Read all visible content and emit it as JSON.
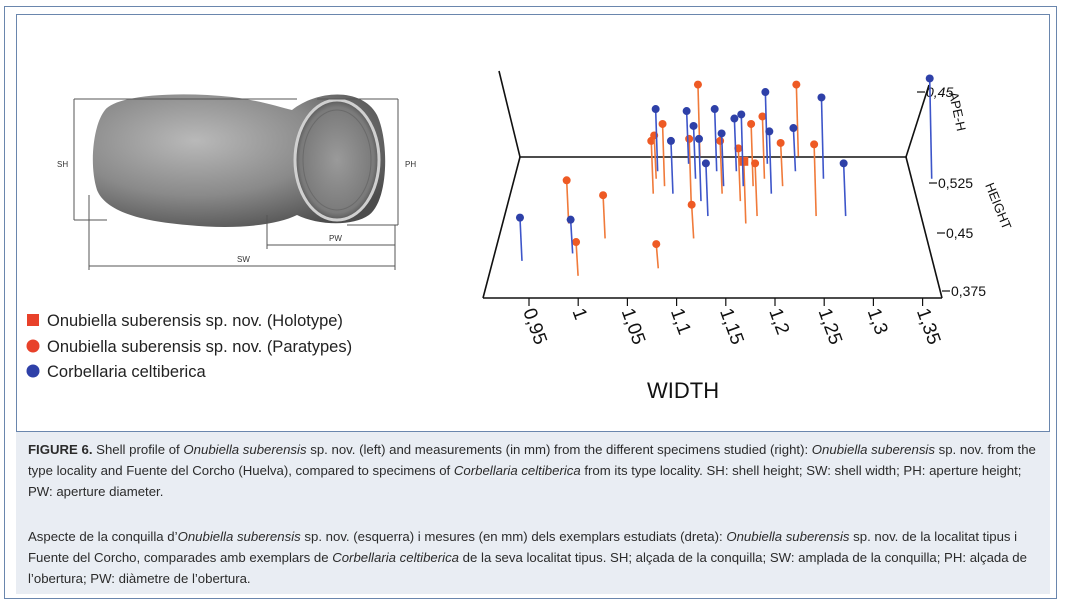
{
  "shell_labels": {
    "sh": "SH",
    "ph": "PH",
    "pw": "PW",
    "sw": "SW"
  },
  "legend": [
    {
      "marker": "square",
      "color": "#e8412a",
      "label": "Onubiella suberensis sp. nov. (Holotype)"
    },
    {
      "marker": "circle",
      "color": "#e8412a",
      "label": "Onubiella suberensis sp. nov. (Paratypes)"
    },
    {
      "marker": "circle",
      "color": "#2e40a8",
      "label": "Corbellaria celtiberica"
    }
  ],
  "chart_data": {
    "type": "scatter3d",
    "xlabel": "WIDTH",
    "ylabel": "HEIGHT",
    "zlabel": "APE-H",
    "x_ticks": [
      "0,95",
      "1",
      "1,05",
      "1,1",
      "1,15",
      "1,2",
      "1,25",
      "1,3",
      "1,35"
    ],
    "y_ticks": [
      "0,525",
      "0,45",
      "0,375"
    ],
    "z_ticks": [
      "0,45"
    ],
    "series": [
      {
        "name": "Onubiella suberensis sp. nov. (Holotype)",
        "marker": "square",
        "color": "#e8412a",
        "points": [
          {
            "w": 1.18,
            "h": 0.46,
            "a": 0.43
          }
        ]
      },
      {
        "name": "Onubiella suberensis sp. nov. (Paratypes)",
        "marker": "circle",
        "color": "#e8412a",
        "points": [
          {
            "w": 1.02,
            "h": 0.39,
            "a": 0.4
          },
          {
            "w": 1.0,
            "h": 0.46,
            "a": 0.41
          },
          {
            "w": 1.04,
            "h": 0.44,
            "a": 0.41
          },
          {
            "w": 1.09,
            "h": 0.51,
            "a": 0.43
          },
          {
            "w": 1.08,
            "h": 0.5,
            "a": 0.42
          },
          {
            "w": 1.08,
            "h": 0.52,
            "a": 0.41
          },
          {
            "w": 1.12,
            "h": 0.55,
            "a": 0.44
          },
          {
            "w": 1.12,
            "h": 0.49,
            "a": 0.43
          },
          {
            "w": 1.13,
            "h": 0.44,
            "a": 0.4
          },
          {
            "w": 1.15,
            "h": 0.5,
            "a": 0.42
          },
          {
            "w": 1.17,
            "h": 0.49,
            "a": 0.42
          },
          {
            "w": 1.18,
            "h": 0.51,
            "a": 0.43
          },
          {
            "w": 1.19,
            "h": 0.52,
            "a": 0.43
          },
          {
            "w": 1.19,
            "h": 0.47,
            "a": 0.42
          },
          {
            "w": 1.21,
            "h": 0.51,
            "a": 0.41
          },
          {
            "w": 1.22,
            "h": 0.55,
            "a": 0.44
          },
          {
            "w": 1.25,
            "h": 0.47,
            "a": 0.44
          },
          {
            "w": 1.1,
            "h": 0.4,
            "a": 0.39
          }
        ]
      },
      {
        "name": "Corbellaria celtiberica",
        "marker": "circle",
        "color": "#2e40a8",
        "points": [
          {
            "w": 0.96,
            "h": 0.41,
            "a": 0.41
          },
          {
            "w": 1.01,
            "h": 0.42,
            "a": 0.4
          },
          {
            "w": 1.08,
            "h": 0.53,
            "a": 0.43
          },
          {
            "w": 1.1,
            "h": 0.5,
            "a": 0.42
          },
          {
            "w": 1.11,
            "h": 0.54,
            "a": 0.42
          },
          {
            "w": 1.12,
            "h": 0.52,
            "a": 0.42
          },
          {
            "w": 1.13,
            "h": 0.49,
            "a": 0.43
          },
          {
            "w": 1.14,
            "h": 0.53,
            "a": 0.43
          },
          {
            "w": 1.15,
            "h": 0.51,
            "a": 0.42
          },
          {
            "w": 1.16,
            "h": 0.53,
            "a": 0.42
          },
          {
            "w": 1.17,
            "h": 0.51,
            "a": 0.44
          },
          {
            "w": 1.19,
            "h": 0.54,
            "a": 0.44
          },
          {
            "w": 1.2,
            "h": 0.5,
            "a": 0.43
          },
          {
            "w": 1.22,
            "h": 0.53,
            "a": 0.41
          },
          {
            "w": 1.25,
            "h": 0.52,
            "a": 0.45
          },
          {
            "w": 1.28,
            "h": 0.47,
            "a": 0.42
          },
          {
            "w": 1.14,
            "h": 0.47,
            "a": 0.42
          },
          {
            "w": 1.36,
            "h": 0.52,
            "a": 0.47
          }
        ]
      }
    ]
  },
  "caption_en": {
    "figure_label": "FIGURE 6.",
    "segments": [
      {
        "t": " Shell profile of ",
        "i": false
      },
      {
        "t": "Onubiella suberensis",
        "i": true
      },
      {
        "t": " sp. nov. (left) and measurements (in mm) from the different specimens studied (right): ",
        "i": false
      },
      {
        "t": "Onubiella suberensis",
        "i": true
      },
      {
        "t": " sp. nov. from the type locality and Fuente del Corcho (Huelva), compared to specimens of ",
        "i": false
      },
      {
        "t": "Corbellaria celtiberica",
        "i": true
      },
      {
        "t": " from its type locality. SH: shell height; SW: shell width; PH: aperture height; PW: aperture diameter.",
        "i": false
      }
    ]
  },
  "caption_ca": {
    "segments": [
      {
        "t": "Aspecte de la conquilla d’",
        "i": false
      },
      {
        "t": "Onubiella suberensis",
        "i": true
      },
      {
        "t": " sp. nov. (esquerra) i mesures (en mm) dels exemplars estudiats (dreta): ",
        "i": false
      },
      {
        "t": "Onubiella suberensis",
        "i": true
      },
      {
        "t": " sp. nov. de la localitat tipus i Fuente del Corcho, comparades amb exemplars de ",
        "i": false
      },
      {
        "t": "Corbellaria celtiberica",
        "i": true
      },
      {
        "t": " de la seva localitat tipus. SH; alçada de la conquilla; SW: amplada de la conquilla; PH: alçada de l’obertura; PW: diàmetre de l’obertura.",
        "i": false
      }
    ]
  }
}
